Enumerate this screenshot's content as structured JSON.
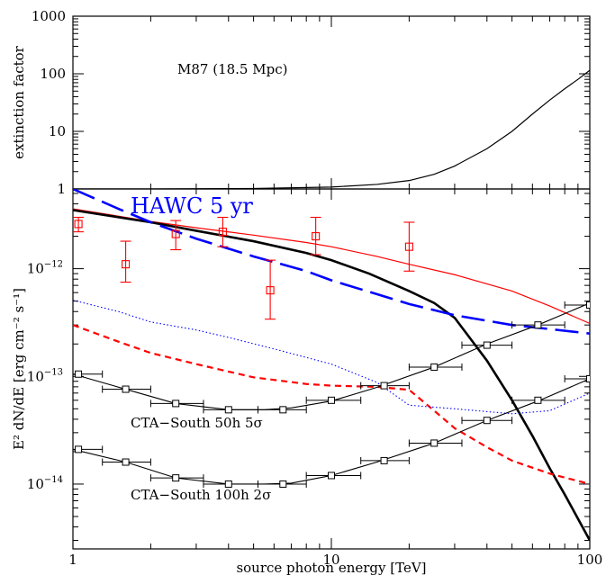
{
  "chart_data": [
    {
      "type": "line",
      "panel": "top",
      "ylabel": "extinction factor",
      "annotation": "M87 (18.5 Mpc)",
      "xscale": "log",
      "yscale": "log",
      "xlim": [
        1,
        100
      ],
      "ylim": [
        1,
        1000
      ],
      "y_tick_labels": [
        "1",
        "10",
        "100",
        "1000"
      ],
      "y_tick_values": [
        1,
        10,
        100,
        1000
      ],
      "series": [
        {
          "style": "solid",
          "color": "#000000",
          "x": [
            1,
            2,
            5,
            10,
            15,
            20,
            25,
            30,
            40,
            50,
            60,
            70,
            80,
            90,
            100
          ],
          "y": [
            1.0,
            1.0,
            1.02,
            1.08,
            1.2,
            1.4,
            1.8,
            2.5,
            5,
            10,
            20,
            35,
            55,
            80,
            115
          ]
        }
      ]
    },
    {
      "type": "line",
      "panel": "bottom",
      "xlabel": "source photon energy [TeV]",
      "ylabel": "E² dN/dE  [erg cm⁻² s⁻¹]",
      "xscale": "log",
      "yscale": "log",
      "xlim": [
        1,
        100
      ],
      "ylim": [
        2.5e-15,
        5.5e-12
      ],
      "x_tick_labels": [
        "1",
        "10",
        "100"
      ],
      "x_tick_values": [
        1,
        10,
        100
      ],
      "y_tick_labels": [
        {
          "mantissa": "10",
          "exp": "−12",
          "value": 1e-12
        },
        {
          "mantissa": "10",
          "exp": "−13",
          "value": 1e-13
        },
        {
          "mantissa": "10",
          "exp": "−14",
          "value": 1e-14
        }
      ],
      "annotations": {
        "hawc": "HAWC 5 yr",
        "cta50": "CTA−South 50h 5σ",
        "cta100": "CTA−South 100h 2σ"
      },
      "series": [
        {
          "style": "solid-thin",
          "color": "#ff0000",
          "x": [
            1,
            2,
            3,
            5,
            8,
            10,
            15,
            20,
            30,
            50,
            70,
            100
          ],
          "y": [
            3.6e-12,
            2.75e-12,
            2.4e-12,
            2.05e-12,
            1.75e-12,
            1.6e-12,
            1.3e-12,
            1.1e-12,
            8.8e-13,
            6.2e-13,
            4.5e-13,
            3.1e-13
          ]
        },
        {
          "style": "solid-thick",
          "color": "#000000",
          "x": [
            1,
            2,
            3,
            5,
            8,
            10,
            14,
            20,
            25,
            30,
            40,
            50,
            60,
            70,
            80,
            100
          ],
          "y": [
            3.5e-12,
            2.7e-12,
            2.25e-12,
            1.8e-12,
            1.4e-12,
            1.2e-12,
            9e-13,
            6.2e-13,
            4.8e-13,
            3.5e-13,
            1.4e-13,
            6e-14,
            2.8e-14,
            1.4e-14,
            8e-15,
            3e-15
          ]
        },
        {
          "style": "long-dash",
          "color": "#0000ff",
          "x": [
            1,
            1.5,
            2,
            3,
            5,
            8,
            10,
            15,
            20,
            30,
            50,
            70,
            100
          ],
          "y": [
            5.5e-12,
            3.6e-12,
            2.7e-12,
            1.9e-12,
            1.3e-12,
            9.5e-13,
            7.8e-13,
            5.8e-13,
            4.7e-13,
            3.7e-13,
            3e-13,
            2.75e-13,
            2.5e-13
          ]
        },
        {
          "style": "dashed",
          "color": "#ff0000",
          "x": [
            1,
            1.5,
            2,
            3,
            5,
            8,
            10,
            15,
            20,
            25,
            30,
            40,
            50,
            70,
            100
          ],
          "y": [
            3e-13,
            2.1e-13,
            1.65e-13,
            1.3e-13,
            9.8e-14,
            8.5e-14,
            8.2e-14,
            8e-14,
            7.5e-14,
            4.8e-14,
            3.3e-14,
            2.2e-14,
            1.65e-14,
            1.25e-14,
            1e-14
          ]
        },
        {
          "style": "dotted",
          "color": "#0000ff",
          "x": [
            1,
            1.5,
            2,
            3,
            4,
            6,
            10,
            15,
            20,
            30,
            50,
            70,
            100
          ],
          "y": [
            5.1e-13,
            4e-13,
            3.2e-13,
            2.7e-13,
            2.3e-13,
            1.8e-13,
            1.3e-13,
            8.8e-14,
            5.4e-14,
            5e-14,
            4.5e-14,
            4.8e-14,
            7e-14
          ]
        },
        {
          "style": "solid-fit",
          "color": "#000000",
          "x": [
            1,
            1.6,
            2.5,
            4,
            5.5,
            7,
            10,
            15,
            25,
            40,
            63,
            100
          ],
          "y": [
            1.05e-13,
            7.6e-14,
            5.6e-14,
            4.9e-14,
            4.9e-14,
            5.1e-14,
            5.9e-14,
            7.9e-14,
            1.22e-13,
            2e-13,
            3e-13,
            4.8e-13
          ]
        },
        {
          "style": "solid-fit",
          "color": "#000000",
          "x": [
            1,
            1.6,
            2.5,
            4,
            5.5,
            7,
            10,
            15,
            25,
            40,
            63,
            100
          ],
          "y": [
            2.1e-14,
            1.6e-14,
            1.14e-14,
            1e-14,
            1e-14,
            1.02e-14,
            1.2e-14,
            1.6e-14,
            2.4e-14,
            3.9e-14,
            5.9e-14,
            9.5e-14
          ]
        }
      ],
      "sensitivity_50h": {
        "x": [
          1.05,
          1.6,
          2.5,
          4,
          6.5,
          10,
          16,
          25,
          40,
          63,
          100
        ],
        "y": [
          1.05e-13,
          7.6e-14,
          5.6e-14,
          4.9e-14,
          4.9e-14,
          6e-14,
          8.2e-14,
          1.22e-13,
          1.95e-13,
          3e-13,
          4.6e-13
        ],
        "xerr_lo": [
          0.8,
          1.3,
          2.0,
          3.2,
          5.2,
          8,
          13,
          20,
          32,
          50,
          80
        ],
        "xerr_hi": [
          1.3,
          2.0,
          3.2,
          5.2,
          8,
          13,
          20,
          32,
          50,
          80,
          100
        ]
      },
      "sensitivity_100h": {
        "x": [
          1.05,
          1.6,
          2.5,
          4,
          6.5,
          10,
          16,
          25,
          40,
          63,
          100
        ],
        "y": [
          2.1e-14,
          1.6e-14,
          1.14e-14,
          1e-14,
          1e-14,
          1.2e-14,
          1.65e-14,
          2.4e-14,
          3.9e-14,
          6e-14,
          9.5e-14
        ],
        "xerr_lo": [
          0.8,
          1.3,
          2.0,
          3.2,
          5.2,
          8,
          13,
          20,
          32,
          50,
          80
        ],
        "xerr_hi": [
          1.3,
          2.0,
          3.2,
          5.2,
          8,
          13,
          20,
          32,
          50,
          80,
          100
        ]
      },
      "measurements": {
        "color": "#ff0000",
        "x": [
          1.05,
          1.6,
          2.5,
          3.8,
          5.8,
          8.7,
          20
        ],
        "y": [
          2.6e-12,
          1.1e-12,
          2.1e-12,
          2.2e-12,
          6.3e-13,
          2e-12,
          1.6e-12
        ],
        "yerr_lo": [
          2.2e-12,
          7.5e-13,
          1.5e-12,
          1.6e-12,
          3.4e-13,
          1.35e-12,
          9.5e-13
        ],
        "yerr_hi": [
          3e-12,
          1.8e-12,
          2.8e-12,
          3e-12,
          1.2e-12,
          3e-12,
          2.7e-12
        ]
      }
    }
  ]
}
